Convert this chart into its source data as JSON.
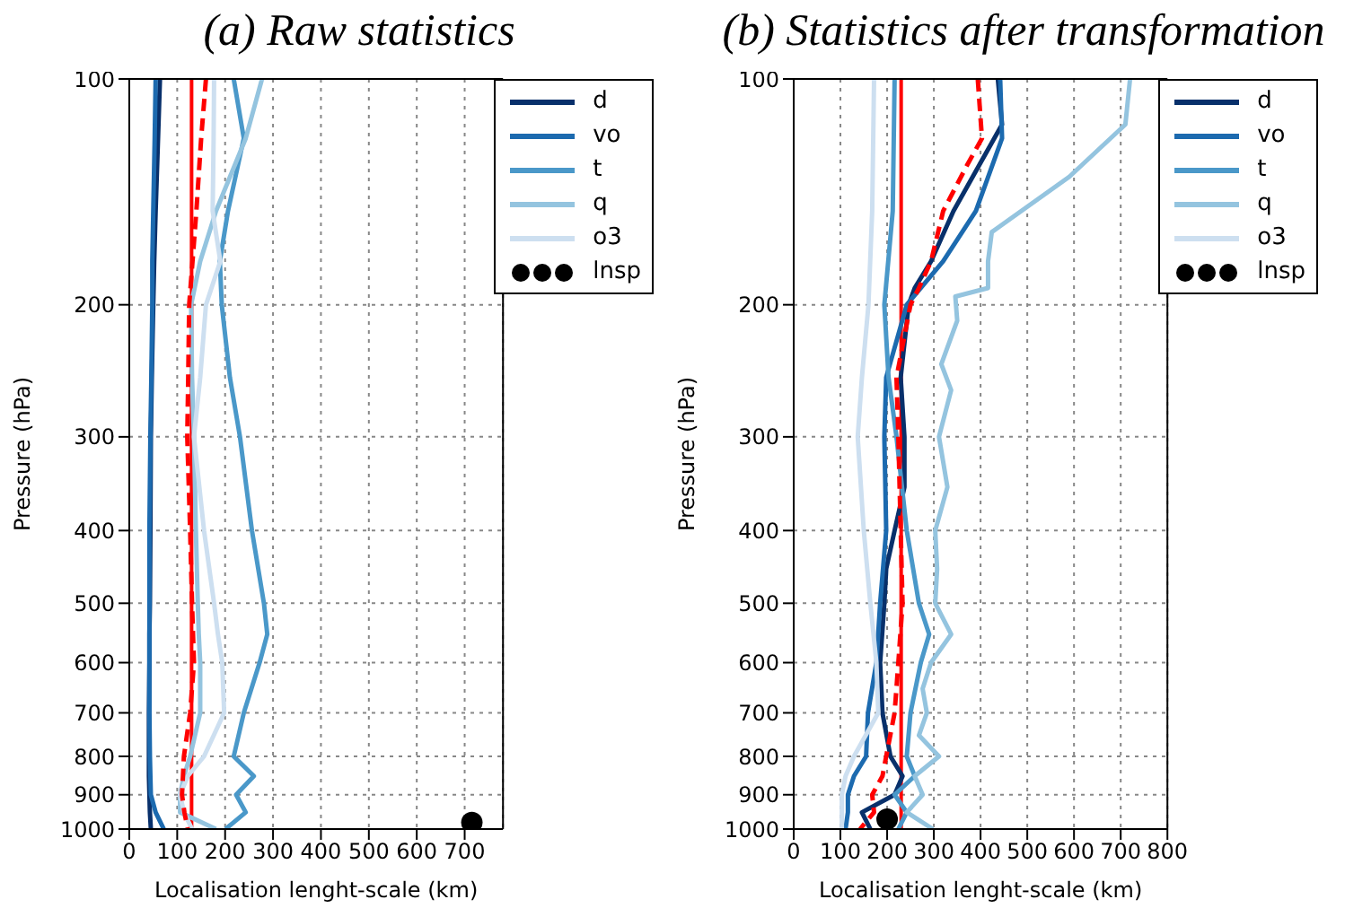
{
  "chart_data": [
    {
      "type": "line",
      "title": "(a) Raw statistics",
      "xlabel": "Localisation lenght-scale (km)",
      "ylabel": "Pressure (hPa)",
      "xlim": [
        0,
        780
      ],
      "xticks": [
        0,
        100,
        200,
        300,
        400,
        500,
        600,
        700
      ],
      "ylim": [
        1000,
        100
      ],
      "yticks": [
        100,
        200,
        300,
        400,
        500,
        600,
        700,
        800,
        900,
        1000
      ],
      "log": "y",
      "grid": true,
      "legend": "top right",
      "ref_lines": [
        {
          "axis": "x",
          "value": 130,
          "color": "#ff0000"
        }
      ],
      "series": [
        {
          "name": "d",
          "color": "#08306b",
          "x": [
            64,
            60,
            55,
            52,
            50,
            47,
            45,
            44,
            43,
            42,
            42,
            41,
            41,
            41,
            42,
            43,
            45
          ],
          "values": [
            100,
            120,
            150,
            175,
            200,
            250,
            300,
            400,
            500,
            550,
            600,
            700,
            800,
            850,
            900,
            950,
            1000
          ]
        },
        {
          "name": "vo",
          "color": "#1c6aaf",
          "x": [
            55,
            53,
            50,
            48,
            48,
            46,
            44,
            42,
            42,
            42,
            42,
            42,
            43,
            44,
            45,
            55,
            72
          ],
          "values": [
            100,
            120,
            150,
            175,
            200,
            250,
            300,
            400,
            500,
            550,
            600,
            700,
            800,
            850,
            900,
            950,
            1000
          ]
        },
        {
          "name": "t",
          "color": "#4a98c9",
          "x": [
            218,
            239,
            206,
            189,
            193,
            210,
            231,
            256,
            281,
            288,
            272,
            239,
            218,
            260,
            223,
            243,
            201
          ],
          "values": [
            100,
            120,
            150,
            175,
            200,
            250,
            300,
            400,
            500,
            550,
            600,
            700,
            800,
            850,
            900,
            950,
            1000
          ]
        },
        {
          "name": "q",
          "color": "#94c4df",
          "x": [
            277,
            243,
            181,
            148,
            129,
            131,
            135,
            139,
            143,
            145,
            148,
            148,
            127,
            114,
            106,
            106,
            181
          ],
          "values": [
            100,
            120,
            150,
            175,
            200,
            250,
            300,
            400,
            500,
            550,
            600,
            700,
            800,
            850,
            900,
            950,
            1000
          ]
        },
        {
          "name": "o3",
          "color": "#cddff0",
          "x": [
            177,
            176,
            174,
            190,
            160,
            148,
            135,
            156,
            177,
            185,
            194,
            198,
            156,
            122,
            106,
            114,
            131
          ],
          "values": [
            100,
            120,
            150,
            175,
            200,
            250,
            300,
            400,
            500,
            550,
            600,
            700,
            800,
            850,
            900,
            950,
            1000
          ]
        },
        {
          "color": "#ff0000",
          "line_style": "dashed",
          "x": [
            160,
            150,
            140,
            132,
            125,
            123,
            121,
            127,
            131,
            133,
            135,
            127,
            114,
            112,
            110,
            115,
            122
          ],
          "values": [
            100,
            120,
            150,
            175,
            200,
            250,
            300,
            400,
            500,
            550,
            600,
            700,
            800,
            850,
            900,
            950,
            1000
          ]
        },
        {
          "name": "lnsp",
          "type": "scatter",
          "marker": "circle",
          "color": "#000000",
          "x": [
            715
          ],
          "values": [
            980
          ]
        }
      ]
    },
    {
      "type": "line",
      "title": "(b) Statistics after transformation",
      "xlabel": "Localisation lenght-scale (km)",
      "ylabel": "Pressure (hPa)",
      "xlim": [
        0,
        800
      ],
      "xticks": [
        0,
        100,
        200,
        300,
        400,
        500,
        600,
        700,
        800
      ],
      "ylim": [
        1000,
        100
      ],
      "yticks": [
        100,
        200,
        300,
        400,
        500,
        600,
        700,
        800,
        900,
        1000
      ],
      "log": "y",
      "grid": true,
      "legend": "top right",
      "ref_lines": [
        {
          "axis": "x",
          "value": 230,
          "color": "#ff0000"
        }
      ],
      "series": [
        {
          "name": "d",
          "color": "#08306b",
          "x": [
            437,
            446,
            398,
            342,
            294,
            259,
            246,
            229,
            237,
            237,
            216,
            198,
            194,
            185,
            190,
            207,
            233,
            216,
            146,
            164
          ],
          "values": [
            100,
            115,
            130,
            150,
            175,
            190,
            200,
            250,
            300,
            350,
            400,
            450,
            500,
            600,
            700,
            800,
            850,
            900,
            950,
            1000
          ]
        },
        {
          "name": "vo",
          "color": "#1c6aaf",
          "x": [
            442,
            446,
            390,
            320,
            242,
            198,
            194,
            198,
            185,
            177,
            159,
            155,
            129,
            116,
            116,
            111
          ],
          "values": [
            100,
            120,
            150,
            175,
            200,
            250,
            300,
            400,
            500,
            600,
            700,
            800,
            850,
            900,
            950,
            1000
          ]
        },
        {
          "name": "t",
          "color": "#4a98c9",
          "x": [
            216,
            212,
            194,
            203,
            220,
            242,
            268,
            290,
            272,
            250,
            242,
            259,
            216,
            242,
            224
          ],
          "values": [
            100,
            150,
            200,
            250,
            300,
            400,
            500,
            550,
            600,
            700,
            800,
            850,
            900,
            950,
            1000
          ]
        },
        {
          "name": "q",
          "color": "#94c4df",
          "x": [
            720,
            710,
            590,
            424,
            416,
            416,
            346,
            350,
            316,
            337,
            311,
            329,
            303,
            307,
            303,
            337,
            294,
            276,
            285,
            268,
            311,
            259,
            276,
            242,
            298
          ],
          "values": [
            100,
            115,
            135,
            160,
            175,
            190,
            195,
            210,
            240,
            260,
            300,
            350,
            400,
            450,
            500,
            550,
            600,
            650,
            700,
            750,
            800,
            850,
            900,
            950,
            1000
          ]
        },
        {
          "name": "o3",
          "color": "#cddff0",
          "x": [
            172,
            168,
            160,
            146,
            137,
            150,
            164,
            177,
            181,
            129,
            111,
            103,
            103,
            103
          ],
          "values": [
            100,
            150,
            200,
            250,
            300,
            400,
            500,
            600,
            700,
            800,
            850,
            900,
            950,
            1000
          ]
        },
        {
          "color": "#ff0000",
          "line_style": "dashed",
          "x": [
            394,
            403,
            372,
            320,
            294,
            268,
            250,
            220,
            224,
            229,
            233,
            224,
            216,
            198,
            190,
            168,
            172,
            142
          ],
          "values": [
            100,
            120,
            130,
            150,
            175,
            190,
            200,
            250,
            300,
            400,
            500,
            600,
            700,
            800,
            850,
            900,
            950,
            1000
          ]
        },
        {
          "name": "lnsp",
          "type": "scatter",
          "marker": "circle",
          "color": "#000000",
          "x": [
            200
          ],
          "values": [
            970
          ]
        }
      ]
    }
  ]
}
